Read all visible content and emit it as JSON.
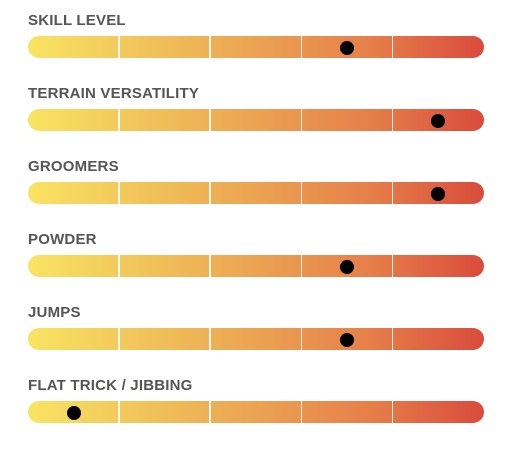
{
  "segments": 5,
  "gradient_colors": [
    "#f8e462",
    "#f1c45a",
    "#eba352",
    "#e67f4a",
    "#d94b3c"
  ],
  "marker_color": "#000000",
  "label_color": "#555555",
  "ratings": [
    {
      "label": "SKILL LEVEL",
      "value": 0.7
    },
    {
      "label": "TERRAIN VERSATILITY",
      "value": 0.9
    },
    {
      "label": "GROOMERS",
      "value": 0.9
    },
    {
      "label": "POWDER",
      "value": 0.7
    },
    {
      "label": "JUMPS",
      "value": 0.7
    },
    {
      "label": "FLAT TRICK / JIBBING",
      "value": 0.1
    }
  ]
}
